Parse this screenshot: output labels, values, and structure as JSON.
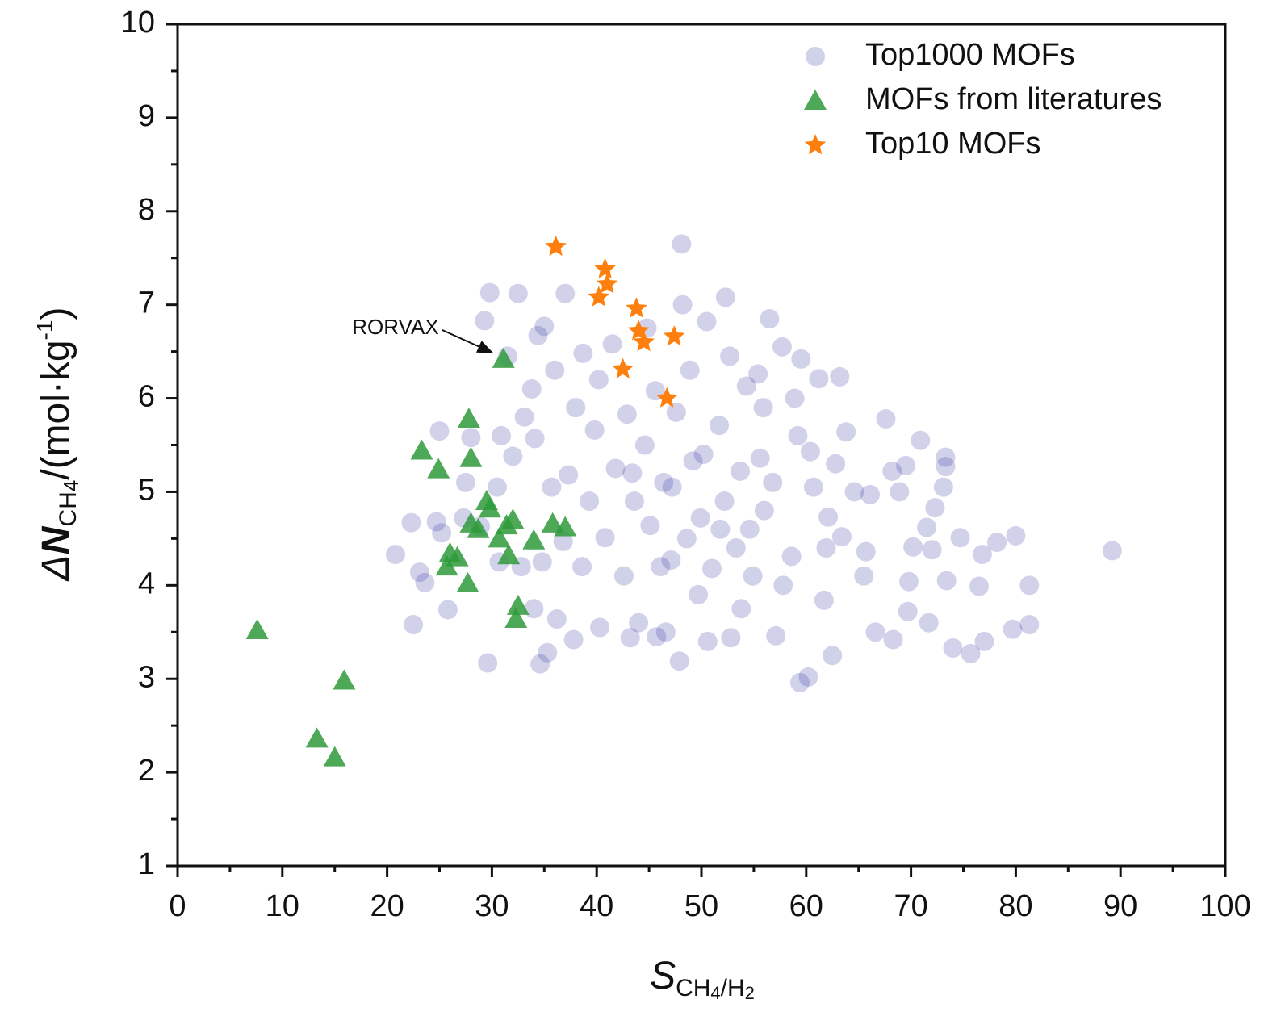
{
  "chart_data": {
    "type": "scatter",
    "xlabel": [
      "S",
      "CH",
      "4",
      "/H",
      "2"
    ],
    "ylabel": [
      "Δ",
      "N",
      "CH",
      "4",
      "/(mol·kg",
      "-1",
      ")"
    ],
    "xlim": [
      0,
      100
    ],
    "ylim": [
      1,
      10
    ],
    "xticks": [
      0,
      10,
      20,
      30,
      40,
      50,
      60,
      70,
      80,
      90,
      100
    ],
    "yticks": [
      1,
      2,
      3,
      4,
      5,
      6,
      7,
      8,
      9,
      10
    ],
    "legend": "upper right",
    "annotations": [
      {
        "text": "RORVAX",
        "x": 31.1,
        "y": 6.42
      }
    ],
    "series": [
      {
        "name": "Top1000 MOFs",
        "color": "#2e2ea0",
        "marker": "circle",
        "x": [
          89.2,
          81.3,
          81.3,
          80,
          79.7,
          78.2,
          76.8,
          77,
          76.5,
          75.7,
          74.7,
          74,
          73.4,
          73.1,
          73.3,
          73.3,
          72.3,
          72,
          71.7,
          71.5,
          70.9,
          70.2,
          69.7,
          69.8,
          69.5,
          68.9,
          68.3,
          68.2,
          67.6,
          66.6,
          66.1,
          65.7,
          64.6,
          63.8,
          63.4,
          62.5,
          62.1,
          61.7,
          61.2,
          60.4,
          60.2,
          59.4,
          59.5,
          58.6,
          57.7,
          57.1,
          56.5,
          56,
          55.6,
          54.9,
          54.3,
          53.7,
          53.3,
          52.8,
          52.3,
          52.2,
          51.7,
          51,
          50.6,
          50.5,
          49.9,
          49.2,
          48.6,
          48.2,
          48.1,
          47.9,
          47.6,
          47.1,
          46.6,
          46.4,
          45.7,
          45.6,
          45.1,
          44.6,
          44,
          43.6,
          43.2,
          42.9,
          42.6,
          41.8,
          41.5,
          40.8,
          40.3,
          40.2,
          39.8,
          39.3,
          38.7,
          38.6,
          38,
          37.8,
          37.3,
          37,
          36.8,
          36.2,
          36,
          35.7,
          35.3,
          35,
          34.8,
          34.6,
          34.4,
          34.1,
          34,
          33.8,
          33.1,
          32.8,
          32.5,
          32,
          31.5,
          30.7,
          30.5,
          29.8,
          29.6,
          29.3,
          28.9,
          28,
          27.3,
          25.8,
          25.2,
          25,
          24.7,
          23.6,
          23.1,
          22.5,
          22.3,
          20.8,
          27.5,
          30.9,
          44.8,
          48.9,
          52.7,
          55.4,
          58.9,
          60.7,
          63.2,
          56.8,
          50.2,
          46.1,
          54.6,
          57.8,
          61.9,
          65.5,
          53.8,
          49.7,
          59.2,
          51.8,
          43.4,
          47.2,
          55.9,
          62.8
        ],
        "y": [
          4.37,
          3.58,
          4,
          4.53,
          3.53,
          4.46,
          4.33,
          3.4,
          3.99,
          3.27,
          4.51,
          3.33,
          4.05,
          5.05,
          5.27,
          5.37,
          4.83,
          4.38,
          3.6,
          4.62,
          5.55,
          4.41,
          3.72,
          4.04,
          5.28,
          5,
          3.42,
          5.22,
          5.78,
          3.5,
          4.97,
          4.36,
          5,
          5.64,
          4.52,
          3.25,
          4.73,
          3.84,
          6.21,
          5.43,
          3.02,
          2.96,
          6.42,
          4.31,
          6.55,
          3.46,
          6.85,
          4.8,
          5.36,
          4.1,
          6.13,
          5.22,
          4.4,
          3.44,
          7.08,
          4.9,
          5.71,
          4.18,
          3.4,
          6.82,
          4.72,
          5.33,
          4.5,
          7,
          7.65,
          3.19,
          5.85,
          4.27,
          3.5,
          5.1,
          3.45,
          6.08,
          4.64,
          5.5,
          3.6,
          4.9,
          3.44,
          5.83,
          4.1,
          5.25,
          6.58,
          4.51,
          3.55,
          6.2,
          5.66,
          4.9,
          6.48,
          4.2,
          5.9,
          3.42,
          5.18,
          7.12,
          4.47,
          3.64,
          6.3,
          5.05,
          3.28,
          6.77,
          4.25,
          3.16,
          6.67,
          5.57,
          3.75,
          6.1,
          5.8,
          4.2,
          7.12,
          5.38,
          6.45,
          4.25,
          5.05,
          7.13,
          3.17,
          6.83,
          4.63,
          5.58,
          4.72,
          3.74,
          4.56,
          5.65,
          4.68,
          4.03,
          4.14,
          3.58,
          4.67,
          4.33,
          5.1,
          5.6,
          6.75,
          6.3,
          6.45,
          6.26,
          6,
          5.05,
          6.23,
          5.1,
          5.4,
          4.2,
          4.6,
          4,
          4.4,
          4.1,
          3.75,
          3.9,
          5.6,
          4.6,
          5.2,
          5.05,
          5.9,
          5.3
        ]
      },
      {
        "name": "MOFs from literatures",
        "color": "#2e9a3a",
        "marker": "triangle",
        "x": [
          7.6,
          13.3,
          15,
          15.9,
          23.3,
          24.9,
          25.7,
          26,
          26.7,
          27.7,
          27.8,
          28,
          28,
          28.7,
          29.5,
          29.8,
          30.7,
          31.1,
          31.4,
          31.6,
          32,
          32.3,
          32.5,
          34,
          35.8,
          37
        ],
        "y": [
          3.52,
          2.36,
          2.16,
          2.98,
          5.44,
          5.24,
          4.2,
          4.34,
          4.3,
          4.02,
          5.78,
          4.66,
          5.36,
          4.6,
          4.9,
          4.82,
          4.5,
          6.42,
          4.64,
          4.32,
          4.7,
          3.64,
          3.78,
          4.48,
          4.66,
          4.62
        ]
      },
      {
        "name": "Top10 MOFs",
        "color": "#ff7f0e",
        "marker": "star",
        "x": [
          36.1,
          40.8,
          41,
          40.2,
          43.8,
          44,
          44.5,
          47.4,
          42.5,
          46.7
        ],
        "y": [
          7.62,
          7.38,
          7.22,
          7.08,
          6.96,
          6.72,
          6.6,
          6.66,
          6.31,
          6
        ]
      }
    ]
  }
}
